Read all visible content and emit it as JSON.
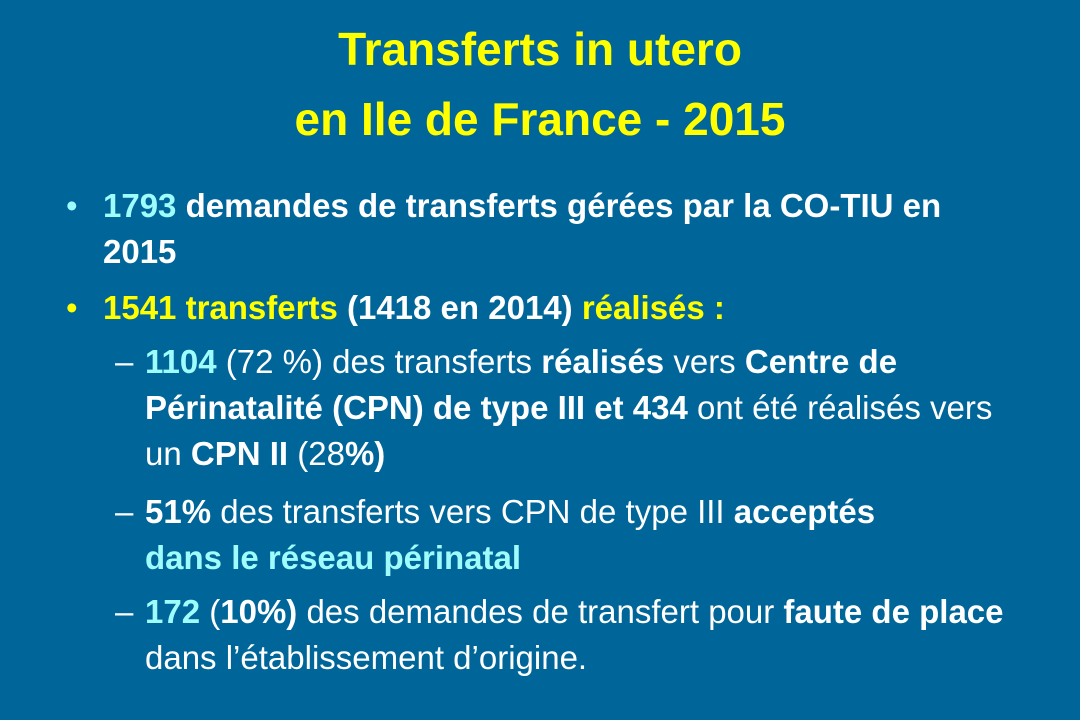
{
  "header": {
    "title": [
      "Transferts in utero",
      "en Ile de France - 2015"
    ]
  },
  "bullets": [
    {
      "runs": [
        "1793",
        "demandes de transferts gérées par la CO-TIU en 2015"
      ]
    },
    {
      "runs": [
        "1541 transferts",
        "(1418 en 2014)",
        "réalisés :"
      ],
      "items": [
        {
          "runs": [
            "1104",
            "(72 %) des transferts",
            "réalisés",
            "vers",
            "Centre de Périnatalité (CPN) de type III et",
            "434",
            "ont été réalisés vers un",
            "CPN II",
            "(28",
            "%)"
          ]
        },
        {
          "runs": [
            "51%",
            "des transferts vers CPN de type III",
            "acceptés",
            "dans le réseau périnatal"
          ]
        },
        {
          "runs": [
            "172",
            "(",
            "10%)",
            "des demandes de transfert pour",
            "faute de place",
            "dans l’établissement d’origine."
          ]
        }
      ]
    }
  ]
}
